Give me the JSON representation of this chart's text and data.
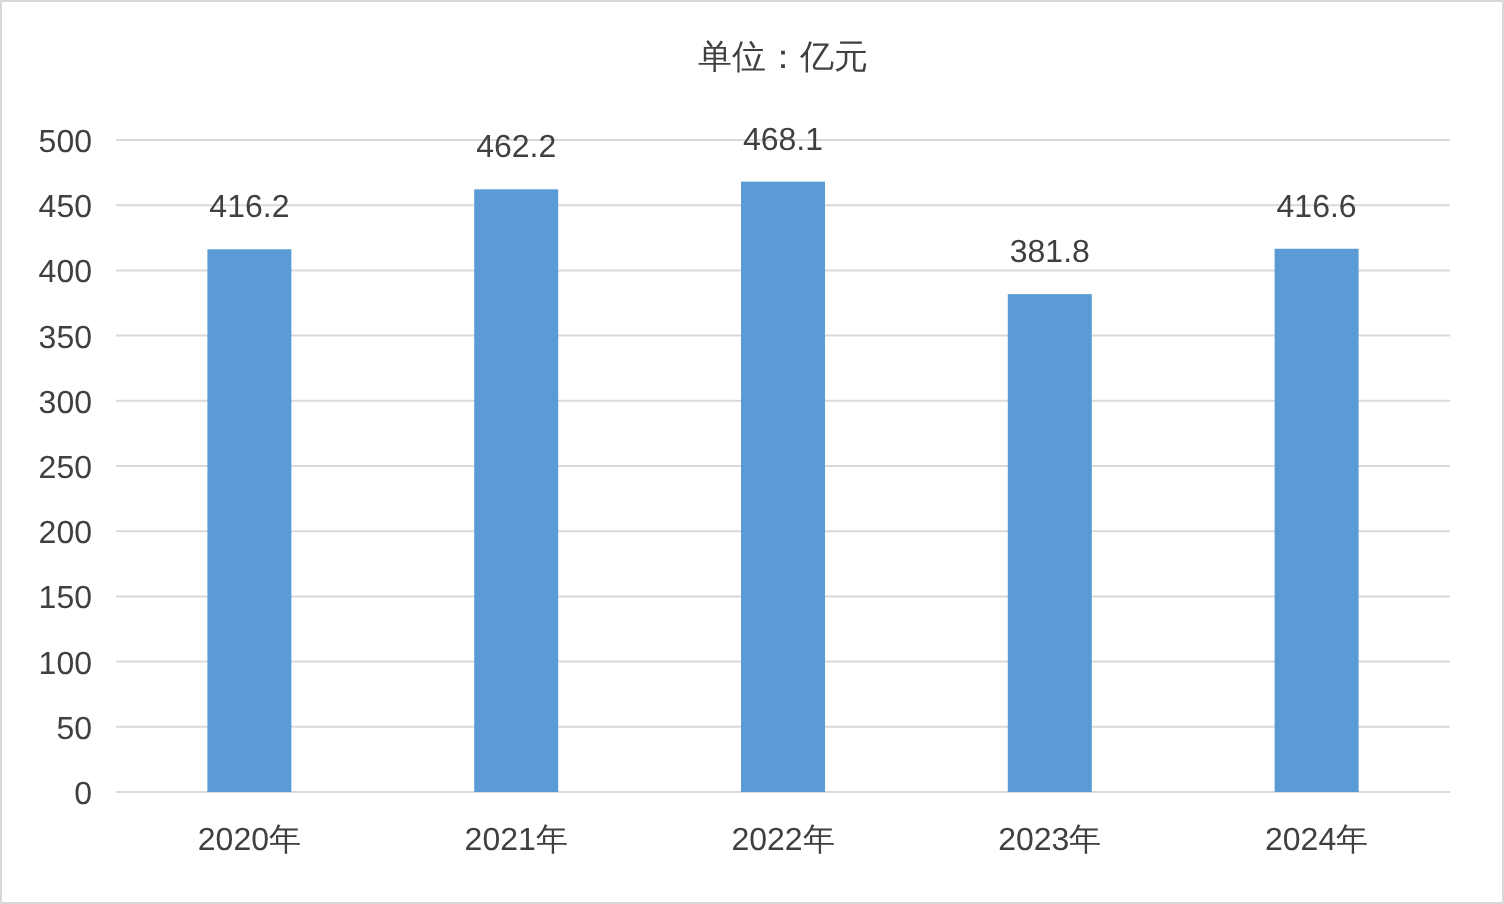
{
  "chart_data": {
    "type": "bar",
    "title": "单位：亿元",
    "categories": [
      "2020年",
      "2021年",
      "2022年",
      "2023年",
      "2024年"
    ],
    "values": [
      416.2,
      462.2,
      468.1,
      381.8,
      416.6
    ],
    "color": "#5b9bd5",
    "ylim": [
      0,
      500
    ],
    "yticks": [
      0,
      50,
      100,
      150,
      200,
      250,
      300,
      350,
      400,
      450,
      500
    ],
    "grid": "y",
    "data_labels": true
  }
}
